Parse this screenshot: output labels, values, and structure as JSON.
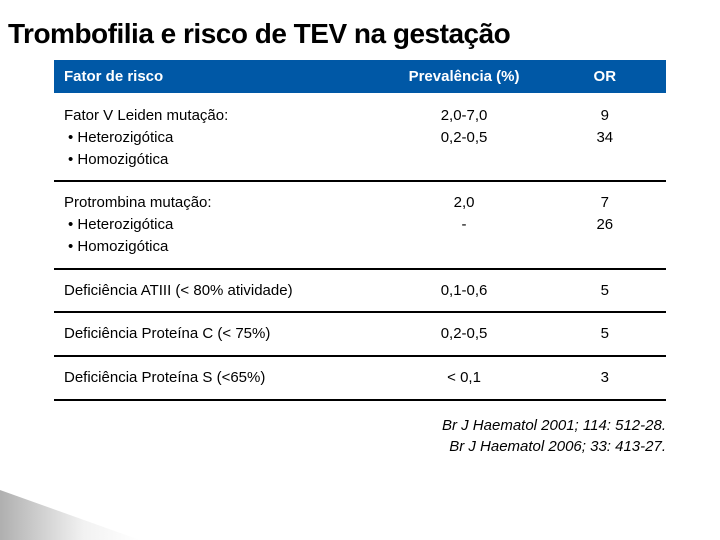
{
  "title": "Trombofilia e risco de TEV na gestação",
  "table": {
    "header": {
      "col1": "Fator de risco",
      "col2": "Prevalência (%)",
      "col3": "OR"
    },
    "rows": [
      {
        "label_title": "Fator V Leiden mutação:",
        "label_b1": "• Heterozigótica",
        "label_b2": "• Homozigótica",
        "prev_l1": "",
        "prev_l2": "2,0-7,0",
        "prev_l3": "0,2-0,5",
        "or_l1": "",
        "or_l2": "9",
        "or_l3": "34"
      },
      {
        "label_title": "Protrombina mutação:",
        "label_b1": "• Heterozigótica",
        "label_b2": "• Homozigótica",
        "prev_l1": "",
        "prev_l2": "2,0",
        "prev_l3": "-",
        "or_l1": "",
        "or_l2": "7",
        "or_l3": "26"
      },
      {
        "label_title": "Deficiência ATIII (< 80% atividade)",
        "prev_l2": "0,1-0,6",
        "or_l2": "5"
      },
      {
        "label_title": "Deficiência Proteína C (< 75%)",
        "prev_l2": "0,2-0,5",
        "or_l2": "5"
      },
      {
        "label_title": "Deficiência Proteína S (<65%)",
        "prev_l2": "< 0,1",
        "or_l2": "3"
      }
    ]
  },
  "citation": {
    "line1": "Br J Haematol 2001; 114: 512-28.",
    "line2": "Br J Haematol 2006; 33: 413-27."
  },
  "colors": {
    "header_bg": "#0058a6",
    "header_fg": "#ffffff",
    "text": "#000000",
    "bg": "#ffffff"
  }
}
